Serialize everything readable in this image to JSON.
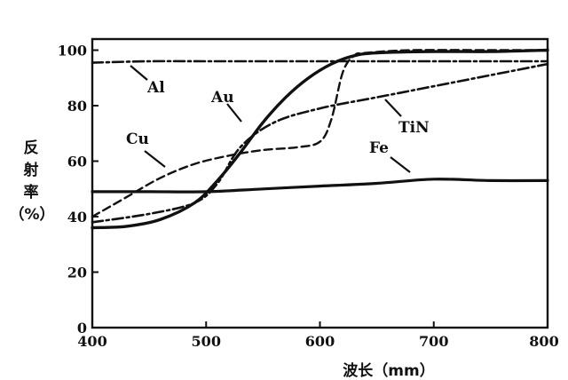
{
  "chart_data": {
    "type": "line",
    "xlabel": "波长（mm）",
    "ylabel": [
      "反",
      "射",
      "率",
      "（%）"
    ],
    "xlim": [
      400,
      800
    ],
    "ylim": [
      0,
      104
    ],
    "xticks": [
      "400",
      "500",
      "600",
      "700",
      "800"
    ],
    "yticks": [
      "0",
      "20",
      "40",
      "60",
      "80",
      "100"
    ],
    "grid": false,
    "series": [
      {
        "name": "Al",
        "style": "dashdot",
        "x": [
          400,
          450,
          500,
          550,
          600,
          650,
          700,
          750,
          800
        ],
        "y": [
          95.5,
          96,
          96,
          96,
          96,
          96,
          96,
          96,
          96
        ]
      },
      {
        "name": "Au",
        "style": "solid-thick",
        "x": [
          400,
          430,
          460,
          490,
          510,
          530,
          550,
          570,
          590,
          610,
          630,
          650,
          700,
          750,
          800
        ],
        "y": [
          36,
          36.5,
          39,
          45,
          53,
          63,
          74,
          83,
          90,
          95,
          98,
          99,
          99.5,
          99.5,
          100
        ]
      },
      {
        "name": "Cu",
        "style": "dashed",
        "x": [
          400,
          430,
          460,
          490,
          520,
          550,
          580,
          600,
          610,
          620,
          630,
          640,
          680,
          750,
          800
        ],
        "y": [
          40,
          47,
          54,
          59,
          62,
          64,
          65,
          67,
          75,
          92,
          98,
          99,
          100,
          100,
          100
        ]
      },
      {
        "name": "TiN",
        "style": "dashdot",
        "x": [
          400,
          450,
          490,
          510,
          530,
          560,
          600,
          650,
          700,
          750,
          800
        ],
        "y": [
          38,
          41,
          45,
          52,
          65,
          74,
          79,
          83,
          87,
          91,
          95
        ]
      },
      {
        "name": "Fe",
        "style": "solid",
        "x": [
          400,
          450,
          500,
          550,
          600,
          650,
          700,
          750,
          800
        ],
        "y": [
          49,
          49,
          49,
          50,
          51,
          52,
          53.5,
          53,
          53
        ]
      }
    ],
    "annotations": [
      "Al",
      "Au",
      "Cu",
      "TiN",
      "Fe"
    ]
  }
}
